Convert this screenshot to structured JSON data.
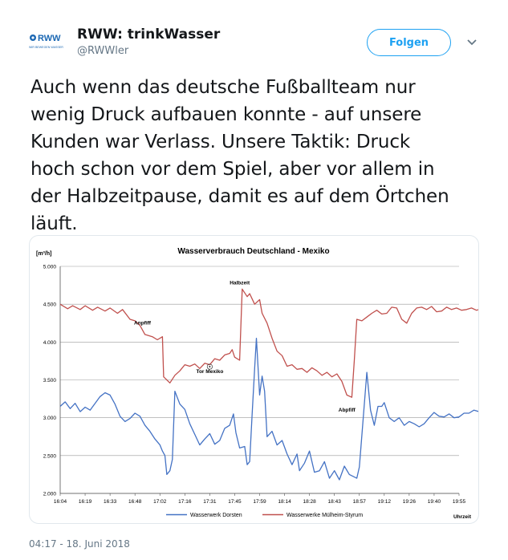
{
  "account": {
    "logo_text": "RWW",
    "logo_subtext": "WIR BEWEGEN WASSER",
    "name": "RWW: trinkWasser",
    "handle": "@RWWler"
  },
  "follow_label": "Folgen",
  "tweet_text": "Auch wenn das deutsche Fußballteam nur\nwenig Druck aufbauen konnte - auf unsere\nKunden war Verlass. Unsere Taktik: Druck\nhoch schon vor dem Spiel, aber vor allem in\nder Halbzeitpause, damit es auf dem Örtchen\nläuft.",
  "timestamp": "04:17 - 18. Juni 2018",
  "colors": {
    "accent": "#1da1f2",
    "dorsten": "#4472c4",
    "muelheim": "#c0504d"
  },
  "chart_data": {
    "type": "line",
    "title": "Wasserverbrauch Deutschland - Mexiko",
    "ylabel": "[m³/h]",
    "xlabel": "Uhrzeit",
    "ylim": [
      2000,
      5000
    ],
    "yticks": [
      "5.000",
      "4.500",
      "4.000",
      "3.500",
      "3.000",
      "2.500",
      "2.000"
    ],
    "xticks": [
      "16:04",
      "16:19",
      "16:33",
      "16:48",
      "17:02",
      "17:16",
      "17:31",
      "17:45",
      "17:59",
      "18:14",
      "18:28",
      "18:43",
      "18:57",
      "19:12",
      "19:26",
      "19:40",
      "19:55"
    ],
    "grid": true,
    "legend_position": "bottom",
    "annotations": [
      {
        "label": "Anpfiff",
        "x_index": 3.3,
        "y": 4230
      },
      {
        "label": "Tor Mexiko",
        "x_index": 6.0,
        "y": 3590
      },
      {
        "label": "Halbzeit",
        "x_index": 7.2,
        "y": 4760
      },
      {
        "label": "Abpfiff",
        "x_index": 11.5,
        "y": 3080
      }
    ],
    "series": [
      {
        "name": "Wasserwerk Dorsten",
        "color": "#4472c4",
        "points": [
          [
            0.0,
            3150
          ],
          [
            0.2,
            3210
          ],
          [
            0.4,
            3120
          ],
          [
            0.6,
            3190
          ],
          [
            0.8,
            3080
          ],
          [
            1.0,
            3140
          ],
          [
            1.2,
            3100
          ],
          [
            1.4,
            3190
          ],
          [
            1.6,
            3280
          ],
          [
            1.8,
            3330
          ],
          [
            2.0,
            3300
          ],
          [
            2.2,
            3180
          ],
          [
            2.4,
            3020
          ],
          [
            2.6,
            2950
          ],
          [
            2.8,
            2990
          ],
          [
            3.0,
            3060
          ],
          [
            3.2,
            3020
          ],
          [
            3.4,
            2900
          ],
          [
            3.6,
            2820
          ],
          [
            3.8,
            2720
          ],
          [
            4.0,
            2640
          ],
          [
            4.1,
            2560
          ],
          [
            4.2,
            2500
          ],
          [
            4.28,
            2250
          ],
          [
            4.4,
            2300
          ],
          [
            4.5,
            2450
          ],
          [
            4.6,
            3350
          ],
          [
            4.8,
            3180
          ],
          [
            5.0,
            3110
          ],
          [
            5.2,
            2920
          ],
          [
            5.4,
            2780
          ],
          [
            5.6,
            2640
          ],
          [
            5.8,
            2720
          ],
          [
            6.0,
            2790
          ],
          [
            6.2,
            2650
          ],
          [
            6.4,
            2700
          ],
          [
            6.6,
            2860
          ],
          [
            6.8,
            2900
          ],
          [
            6.95,
            3050
          ],
          [
            7.05,
            2800
          ],
          [
            7.2,
            2600
          ],
          [
            7.4,
            2620
          ],
          [
            7.5,
            2380
          ],
          [
            7.6,
            2420
          ],
          [
            7.7,
            3050
          ],
          [
            7.8,
            3650
          ],
          [
            7.87,
            4050
          ],
          [
            8.0,
            3300
          ],
          [
            8.1,
            3550
          ],
          [
            8.2,
            3350
          ],
          [
            8.3,
            2750
          ],
          [
            8.5,
            2820
          ],
          [
            8.7,
            2640
          ],
          [
            8.9,
            2700
          ],
          [
            9.1,
            2520
          ],
          [
            9.3,
            2380
          ],
          [
            9.5,
            2520
          ],
          [
            9.6,
            2300
          ],
          [
            9.8,
            2400
          ],
          [
            10.0,
            2560
          ],
          [
            10.2,
            2280
          ],
          [
            10.4,
            2300
          ],
          [
            10.6,
            2420
          ],
          [
            10.8,
            2200
          ],
          [
            11.0,
            2300
          ],
          [
            11.2,
            2180
          ],
          [
            11.4,
            2360
          ],
          [
            11.6,
            2250
          ],
          [
            11.9,
            2200
          ],
          [
            12.0,
            2350
          ],
          [
            12.3,
            3600
          ],
          [
            12.45,
            3100
          ],
          [
            12.6,
            2900
          ],
          [
            12.75,
            3150
          ],
          [
            12.9,
            3150
          ],
          [
            13.0,
            3200
          ],
          [
            13.2,
            3000
          ],
          [
            13.4,
            2950
          ],
          [
            13.6,
            3000
          ],
          [
            13.8,
            2900
          ],
          [
            14.0,
            2950
          ],
          [
            14.2,
            2920
          ],
          [
            14.4,
            2880
          ],
          [
            14.6,
            2920
          ],
          [
            14.8,
            3000
          ],
          [
            15.0,
            3070
          ],
          [
            15.2,
            3020
          ],
          [
            15.4,
            3010
          ],
          [
            15.6,
            3050
          ],
          [
            15.8,
            3000
          ],
          [
            16.0,
            3010
          ],
          [
            16.2,
            3060
          ],
          [
            16.4,
            3060
          ],
          [
            16.6,
            3100
          ],
          [
            16.8,
            3080
          ],
          [
            17.0,
            3170
          ]
        ]
      },
      {
        "name": "Wasserwerke Mülheim-Styrum",
        "color": "#c0504d",
        "points": [
          [
            0.0,
            4500
          ],
          [
            0.3,
            4440
          ],
          [
            0.5,
            4480
          ],
          [
            0.8,
            4430
          ],
          [
            1.0,
            4480
          ],
          [
            1.3,
            4420
          ],
          [
            1.5,
            4460
          ],
          [
            1.8,
            4410
          ],
          [
            2.0,
            4450
          ],
          [
            2.3,
            4380
          ],
          [
            2.5,
            4430
          ],
          [
            2.8,
            4300
          ],
          [
            3.0,
            4280
          ],
          [
            3.2,
            4220
          ],
          [
            3.4,
            4100
          ],
          [
            3.7,
            4070
          ],
          [
            3.9,
            4030
          ],
          [
            4.1,
            4070
          ],
          [
            4.15,
            3540
          ],
          [
            4.4,
            3460
          ],
          [
            4.6,
            3560
          ],
          [
            4.8,
            3620
          ],
          [
            5.0,
            3700
          ],
          [
            5.2,
            3680
          ],
          [
            5.4,
            3710
          ],
          [
            5.6,
            3650
          ],
          [
            5.8,
            3720
          ],
          [
            6.0,
            3700
          ],
          [
            6.2,
            3780
          ],
          [
            6.4,
            3760
          ],
          [
            6.6,
            3830
          ],
          [
            6.8,
            3850
          ],
          [
            6.9,
            3900
          ],
          [
            7.0,
            3800
          ],
          [
            7.2,
            3760
          ],
          [
            7.3,
            4700
          ],
          [
            7.5,
            4600
          ],
          [
            7.6,
            4640
          ],
          [
            7.8,
            4500
          ],
          [
            8.0,
            4560
          ],
          [
            8.1,
            4380
          ],
          [
            8.3,
            4250
          ],
          [
            8.5,
            4050
          ],
          [
            8.7,
            3880
          ],
          [
            8.9,
            3820
          ],
          [
            9.1,
            3680
          ],
          [
            9.3,
            3700
          ],
          [
            9.5,
            3640
          ],
          [
            9.7,
            3650
          ],
          [
            9.9,
            3600
          ],
          [
            10.1,
            3660
          ],
          [
            10.3,
            3620
          ],
          [
            10.5,
            3560
          ],
          [
            10.7,
            3600
          ],
          [
            10.9,
            3540
          ],
          [
            11.1,
            3580
          ],
          [
            11.3,
            3480
          ],
          [
            11.5,
            3300
          ],
          [
            11.7,
            3270
          ],
          [
            11.8,
            3760
          ],
          [
            11.9,
            4300
          ],
          [
            12.1,
            4280
          ],
          [
            12.3,
            4330
          ],
          [
            12.5,
            4380
          ],
          [
            12.7,
            4420
          ],
          [
            12.9,
            4370
          ],
          [
            13.1,
            4380
          ],
          [
            13.3,
            4460
          ],
          [
            13.5,
            4450
          ],
          [
            13.7,
            4300
          ],
          [
            13.9,
            4250
          ],
          [
            14.1,
            4380
          ],
          [
            14.3,
            4450
          ],
          [
            14.5,
            4460
          ],
          [
            14.7,
            4430
          ],
          [
            14.9,
            4470
          ],
          [
            15.1,
            4400
          ],
          [
            15.3,
            4410
          ],
          [
            15.5,
            4460
          ],
          [
            15.7,
            4430
          ],
          [
            15.9,
            4450
          ],
          [
            16.1,
            4420
          ],
          [
            16.3,
            4430
          ],
          [
            16.5,
            4450
          ],
          [
            16.7,
            4420
          ],
          [
            16.9,
            4440
          ],
          [
            17.0,
            4410
          ]
        ]
      }
    ]
  }
}
